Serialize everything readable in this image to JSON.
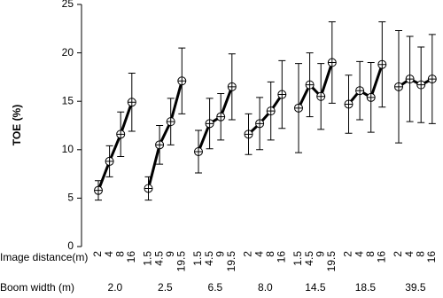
{
  "chart_data": {
    "type": "line",
    "ylabel": "TOE (%)",
    "ylim": [
      0,
      25
    ],
    "yticks": [
      0,
      5,
      10,
      15,
      20,
      25
    ],
    "row_labels": [
      "Image distance(m)",
      "Boom width (m)"
    ],
    "color": "#000000",
    "groups": [
      {
        "label": "2.0",
        "categories": [
          "2",
          "4",
          "8",
          "16"
        ],
        "values": [
          5.8,
          8.8,
          11.6,
          14.9
        ],
        "errors": [
          1.0,
          1.6,
          2.3,
          3.0
        ]
      },
      {
        "label": "2.5",
        "categories": [
          "1.5",
          "4.5",
          "9",
          "19.5"
        ],
        "values": [
          6.0,
          10.5,
          12.9,
          17.1
        ],
        "errors": [
          1.2,
          2.0,
          2.4,
          3.4
        ]
      },
      {
        "label": "6.5",
        "categories": [
          "1.5",
          "4.5",
          "9",
          "19.5"
        ],
        "values": [
          9.8,
          12.7,
          13.4,
          16.5
        ],
        "errors": [
          2.2,
          2.6,
          2.4,
          3.4
        ]
      },
      {
        "label": "8.0",
        "categories": [
          "2",
          "4",
          "8",
          "16"
        ],
        "values": [
          11.6,
          12.7,
          14.0,
          15.7
        ],
        "errors": [
          2.1,
          2.7,
          3.0,
          3.5
        ]
      },
      {
        "label": "14.5",
        "categories": [
          "1.5",
          "4.5",
          "9",
          "19.5"
        ],
        "values": [
          14.3,
          16.7,
          15.5,
          19.0
        ],
        "errors": [
          4.6,
          3.3,
          3.4,
          4.2
        ]
      },
      {
        "label": "18.5",
        "categories": [
          "2",
          "4",
          "8",
          "16"
        ],
        "values": [
          14.7,
          16.1,
          15.4,
          18.8
        ],
        "errors": [
          3.0,
          3.0,
          3.6,
          4.4
        ]
      },
      {
        "label": "39.5",
        "categories": [
          "2",
          "4",
          "8",
          "16"
        ],
        "values": [
          16.5,
          17.3,
          16.7,
          17.3
        ],
        "errors": [
          5.8,
          4.4,
          3.9,
          4.6
        ]
      }
    ]
  }
}
